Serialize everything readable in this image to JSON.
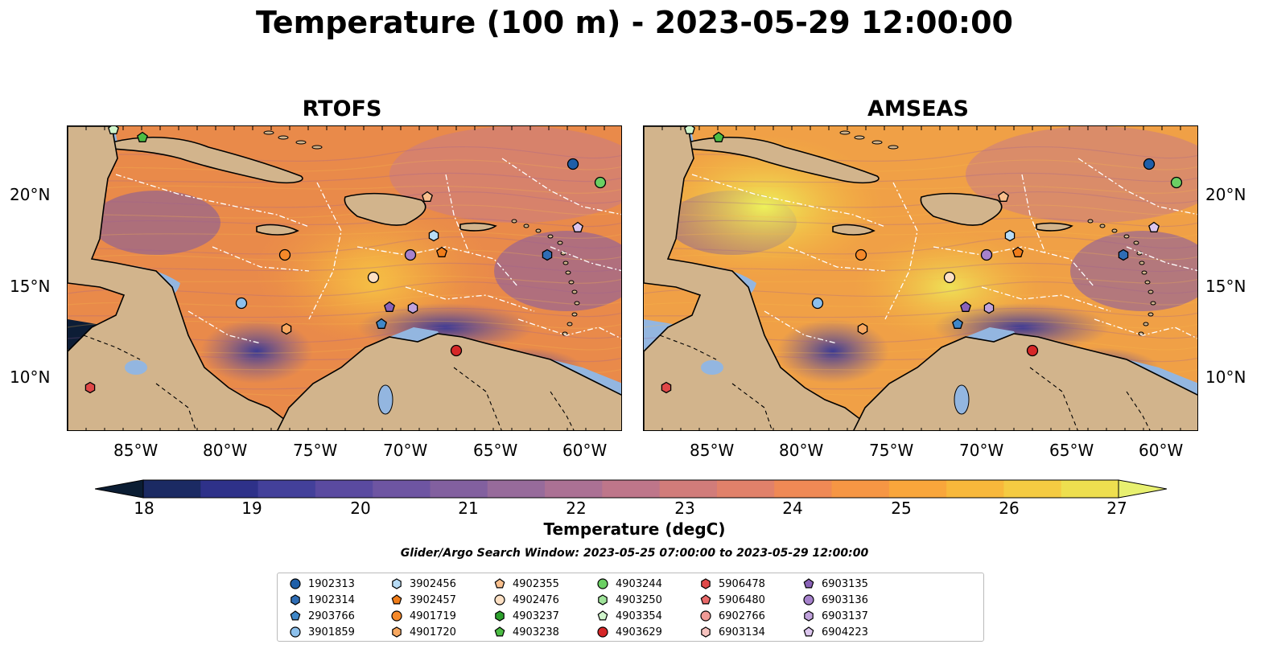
{
  "title": "Temperature (100 m) - 2023-05-29 12:00:00",
  "panels": [
    {
      "title": "RTOFS"
    },
    {
      "title": "AMSEAS"
    }
  ],
  "lat_labels": [
    "20°N",
    "15°N",
    "10°N"
  ],
  "lon_labels": [
    "85°W",
    "80°W",
    "75°W",
    "70°W",
    "65°W",
    "60°W"
  ],
  "colorbar": {
    "label": "Temperature (degC)",
    "ticks": [
      "18",
      "19",
      "20",
      "21",
      "22",
      "23",
      "24",
      "25",
      "26",
      "27"
    ],
    "min": 18,
    "max": 27,
    "colors": [
      "#0b1d33",
      "#1b2a63",
      "#2e3189",
      "#43409a",
      "#5a4aa0",
      "#6e55a2",
      "#82609f",
      "#976b9b",
      "#ab7194",
      "#be768a",
      "#d17c7a",
      "#e1816a",
      "#ef8955",
      "#f69644",
      "#f9a63b",
      "#f8b83b",
      "#f5cb42",
      "#eedf4f",
      "#e8f070"
    ]
  },
  "search_window": "Glider/Argo Search Window: 2023-05-25 07:00:00 to 2023-05-29 12:00:00",
  "legend": [
    {
      "id": "1902313",
      "marker": "circle",
      "color": "#1f5fa8"
    },
    {
      "id": "1902314",
      "marker": "hexagon",
      "color": "#2f6db5"
    },
    {
      "id": "2903766",
      "marker": "pentagon",
      "color": "#3f87c8"
    },
    {
      "id": "3901859",
      "marker": "circle",
      "color": "#8cc0ec"
    },
    {
      "id": "3902456",
      "marker": "hexagon",
      "color": "#b7dcf6"
    },
    {
      "id": "3902457",
      "marker": "pentagon",
      "color": "#f07d1a"
    },
    {
      "id": "4901719",
      "marker": "circle",
      "color": "#f5892a"
    },
    {
      "id": "4901720",
      "marker": "hexagon",
      "color": "#f8a860"
    },
    {
      "id": "4902355",
      "marker": "pentagon",
      "color": "#f9c08e"
    },
    {
      "id": "4902476",
      "marker": "circle",
      "color": "#fde0c4"
    },
    {
      "id": "4903237",
      "marker": "hexagon",
      "color": "#2ca02c"
    },
    {
      "id": "4903238",
      "marker": "pentagon",
      "color": "#4cbd44"
    },
    {
      "id": "4903244",
      "marker": "circle",
      "color": "#6bcf63"
    },
    {
      "id": "4903250",
      "marker": "hexagon",
      "color": "#9fe39a"
    },
    {
      "id": "4903354",
      "marker": "pentagon",
      "color": "#d0f5cc"
    },
    {
      "id": "4903629",
      "marker": "circle",
      "color": "#d62728"
    },
    {
      "id": "5906478",
      "marker": "hexagon",
      "color": "#e04848"
    },
    {
      "id": "5906480",
      "marker": "pentagon",
      "color": "#ea6a6a"
    },
    {
      "id": "6902766",
      "marker": "circle",
      "color": "#f09a96"
    },
    {
      "id": "6903134",
      "marker": "hexagon",
      "color": "#f7c3bf"
    },
    {
      "id": "6903135",
      "marker": "pentagon",
      "color": "#8a62b8"
    },
    {
      "id": "6903136",
      "marker": "circle",
      "color": "#a682cc"
    },
    {
      "id": "6903137",
      "marker": "hexagon",
      "color": "#c0a2dc"
    },
    {
      "id": "6904223",
      "marker": "pentagon",
      "color": "#dcc6ee"
    }
  ],
  "map_colors": {
    "land": "#d2b48c",
    "shallow": "#93b6e0",
    "coast": "#000000"
  }
}
